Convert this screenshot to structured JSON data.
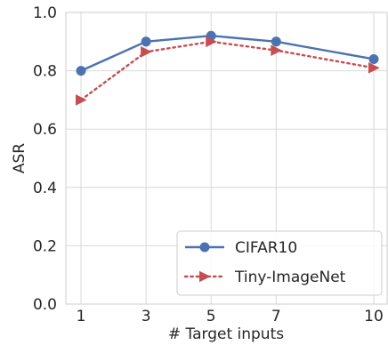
{
  "chart_data": {
    "type": "line",
    "xlabel": "# Target inputs",
    "ylabel": "ASR",
    "x": [
      1,
      3,
      5,
      7,
      10
    ],
    "x_ticks": [
      "1",
      "3",
      "5",
      "7",
      "10"
    ],
    "y_ticks": [
      "0.0",
      "0.2",
      "0.4",
      "0.6",
      "0.8",
      "1.0"
    ],
    "ylim": [
      0,
      1
    ],
    "grid": true,
    "legend_position": "bottom-right",
    "series": [
      {
        "name": "CIFAR10",
        "values": [
          0.8,
          0.9,
          0.92,
          0.9,
          0.84
        ],
        "color": "#4c72b0",
        "marker": "circle",
        "line_style": "solid"
      },
      {
        "name": "Tiny-ImageNet",
        "values": [
          0.7,
          0.865,
          0.9,
          0.87,
          0.81
        ],
        "color": "#c44e52",
        "marker": "triangle-right",
        "line_style": "dotted"
      }
    ]
  }
}
